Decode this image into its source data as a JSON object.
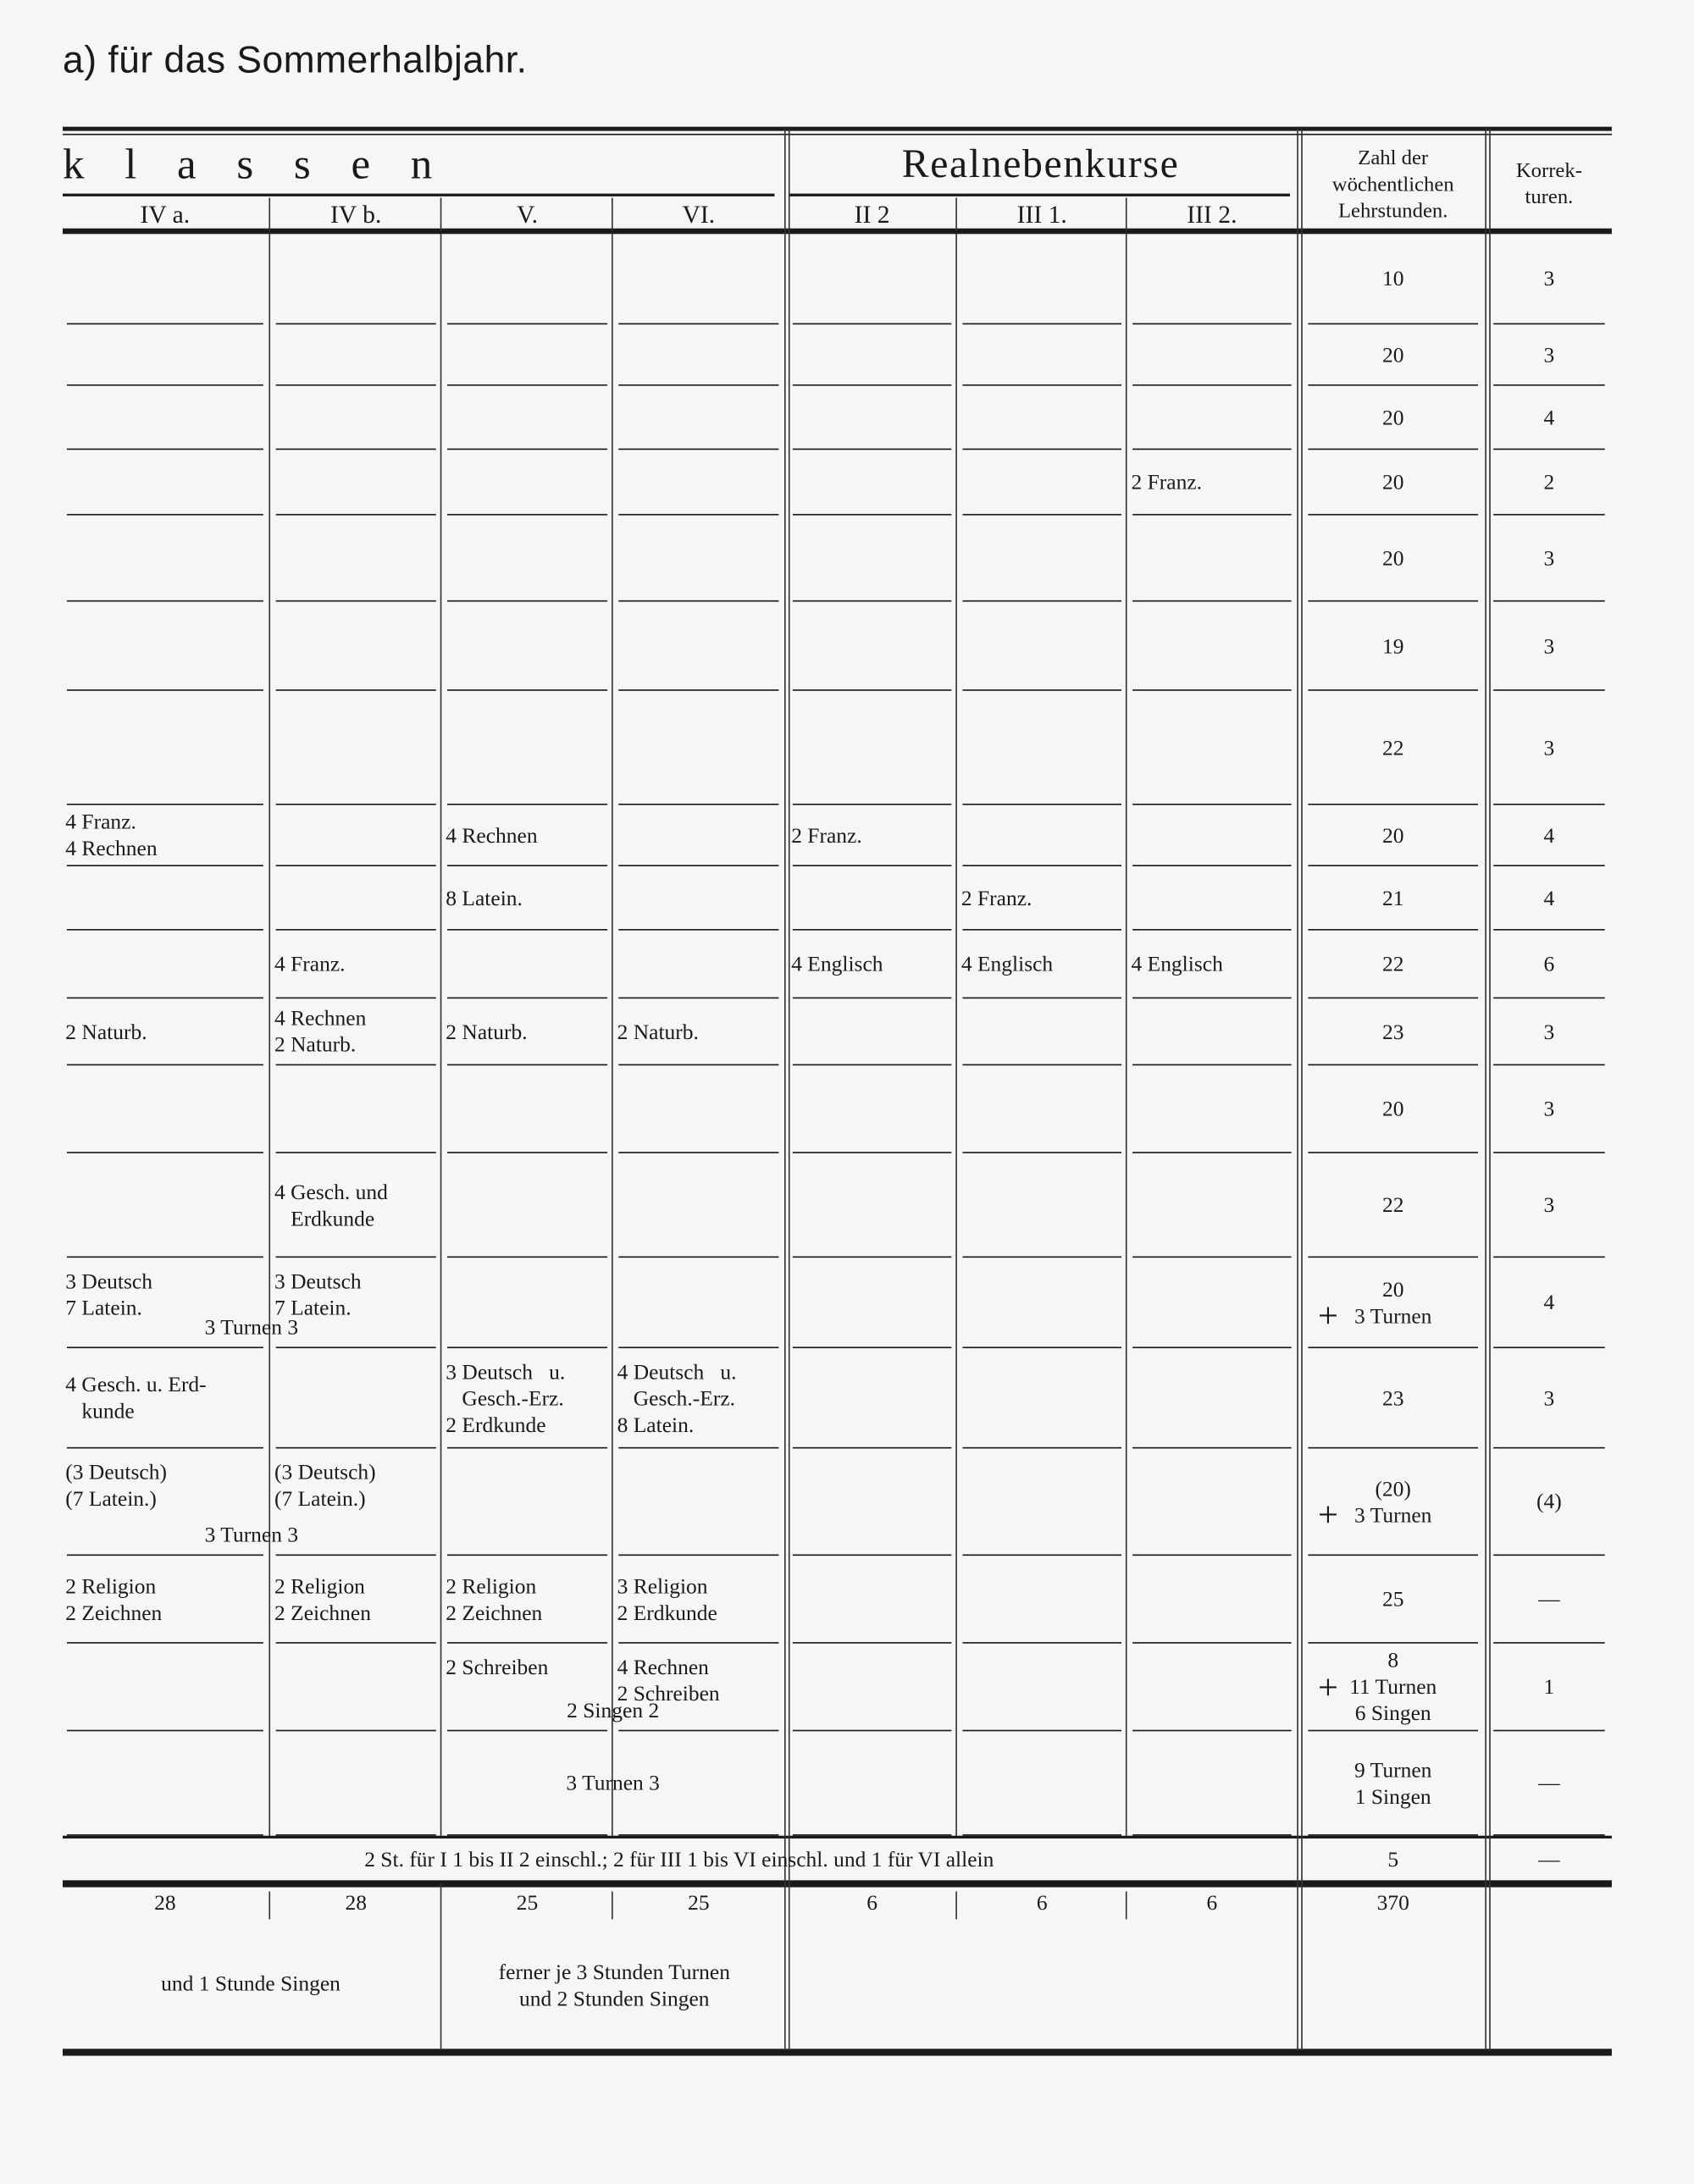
{
  "title": "a) für das Sommerhalbjahr.",
  "header": {
    "group_klassen": "klassen",
    "group_real": "Realnebenkurse",
    "zahl": [
      "Zahl der",
      "wöchentlichen",
      "Lehrstunden."
    ],
    "korr": [
      "Korrek-",
      "turen."
    ],
    "columns": [
      "IV a.",
      "IV b.",
      "V.",
      "VI.",
      "II 2",
      "III 1.",
      "III 2."
    ]
  },
  "plus_sign": "+",
  "rows": [
    {
      "zahl": [
        "10"
      ],
      "korr": "3"
    },
    {
      "zahl": [
        "20"
      ],
      "korr": "3"
    },
    {
      "zahl": [
        "20"
      ],
      "korr": "4"
    },
    {
      "cells": {
        "6": [
          "2 Franz."
        ]
      },
      "zahl": [
        "20"
      ],
      "korr": "2"
    },
    {
      "zahl": [
        "20"
      ],
      "korr": "3"
    },
    {
      "zahl": [
        "19"
      ],
      "korr": "3"
    },
    {
      "zahl": [
        "22"
      ],
      "korr": "3"
    },
    {
      "cells": {
        "0": [
          "4 Franz.",
          "4 Rechnen"
        ],
        "2": [
          "4 Rechnen"
        ],
        "4": [
          "2 Franz."
        ]
      },
      "zahl": [
        "20"
      ],
      "korr": "4"
    },
    {
      "cells": {
        "2": [
          "8 Latein."
        ],
        "5": [
          "2 Franz."
        ]
      },
      "zahl": [
        "21"
      ],
      "korr": "4"
    },
    {
      "cells": {
        "1": [
          "4 Franz."
        ],
        "4": [
          "4 Englisch"
        ],
        "5": [
          "4 Englisch"
        ],
        "6": [
          "4 Englisch"
        ]
      },
      "zahl": [
        "22"
      ],
      "korr": "6"
    },
    {
      "cells": {
        "0": [
          "2 Naturb."
        ],
        "1": [
          "4 Rechnen",
          "2 Naturb."
        ],
        "2": [
          "2 Naturb."
        ],
        "3": [
          "2 Naturb."
        ]
      },
      "zahl": [
        "23"
      ],
      "korr": "3"
    },
    {
      "zahl": [
        "20"
      ],
      "korr": "3"
    },
    {
      "cells": {
        "1": [
          "4 Gesch. und",
          "   Erdkunde"
        ]
      },
      "zahl": [
        "22"
      ],
      "korr": "3"
    },
    {
      "cells": {
        "0": [
          "3 Deutsch",
          "7 Latein."
        ],
        "1": [
          "3 Deutsch",
          "7 Latein."
        ]
      },
      "span": {
        "from": 0,
        "to": 1,
        "text": "3 Turnen 3"
      },
      "zahl": [
        "20",
        "3 Turnen"
      ],
      "plus": true,
      "korr": "4"
    },
    {
      "cells": {
        "0": [
          "4 Gesch. u. Erd-",
          "   kunde"
        ],
        "2": [
          "3 Deutsch   u.",
          "   Gesch.-Erz.",
          "2 Erdkunde"
        ],
        "3": [
          "4 Deutsch   u.",
          "   Gesch.-Erz.",
          "8 Latein."
        ]
      },
      "zahl": [
        "23"
      ],
      "korr": "3"
    },
    {
      "cells": {
        "0": [
          "(3 Deutsch)",
          "(7 Latein.)"
        ],
        "1": [
          "(3 Deutsch)",
          "(7 Latein.)"
        ]
      },
      "span": {
        "from": 0,
        "to": 1,
        "text": "3 Turnen 3"
      },
      "zahl": [
        "(20)",
        "3 Turnen"
      ],
      "plus": true,
      "korr": "(4)"
    },
    {
      "cells": {
        "0": [
          "2 Religion",
          "2 Zeichnen"
        ],
        "1": [
          "2 Religion",
          "2 Zeichnen"
        ],
        "2": [
          "2 Religion",
          "2 Zeichnen"
        ],
        "3": [
          "3 Religion",
          "2 Erdkunde"
        ]
      },
      "zahl": [
        "25"
      ],
      "korr": "—"
    },
    {
      "cells": {
        "2": [
          "2 Schreiben"
        ],
        "3": [
          "4 Rechnen",
          "2 Schreiben"
        ]
      },
      "span": {
        "from": 2,
        "to": 3,
        "text": "2 Singen 2"
      },
      "zahl": [
        "8",
        "11 Turnen",
        "6 Singen"
      ],
      "plus": true,
      "korr": "1"
    },
    {
      "span": {
        "from": 2,
        "to": 3,
        "text": "3 Turnen 3"
      },
      "zahl": [
        "9 Turnen",
        "1 Singen"
      ],
      "korr": "—"
    }
  ],
  "footer_row": {
    "text": "2 St. für I 1 bis II 2 einschl.; 2 für III 1 bis VI einschl. und 1 für VI allein",
    "zahl": "5",
    "korr": "—"
  },
  "sums": {
    "columns": [
      "28",
      "28",
      "25",
      "25",
      "6",
      "6",
      "6"
    ],
    "zahl": "370"
  },
  "notes": {
    "ivab": "und 1 Stunde Singen",
    "vvi": [
      "ferner je 3 Stunden Turnen",
      "und 2 Stunden Singen"
    ]
  }
}
